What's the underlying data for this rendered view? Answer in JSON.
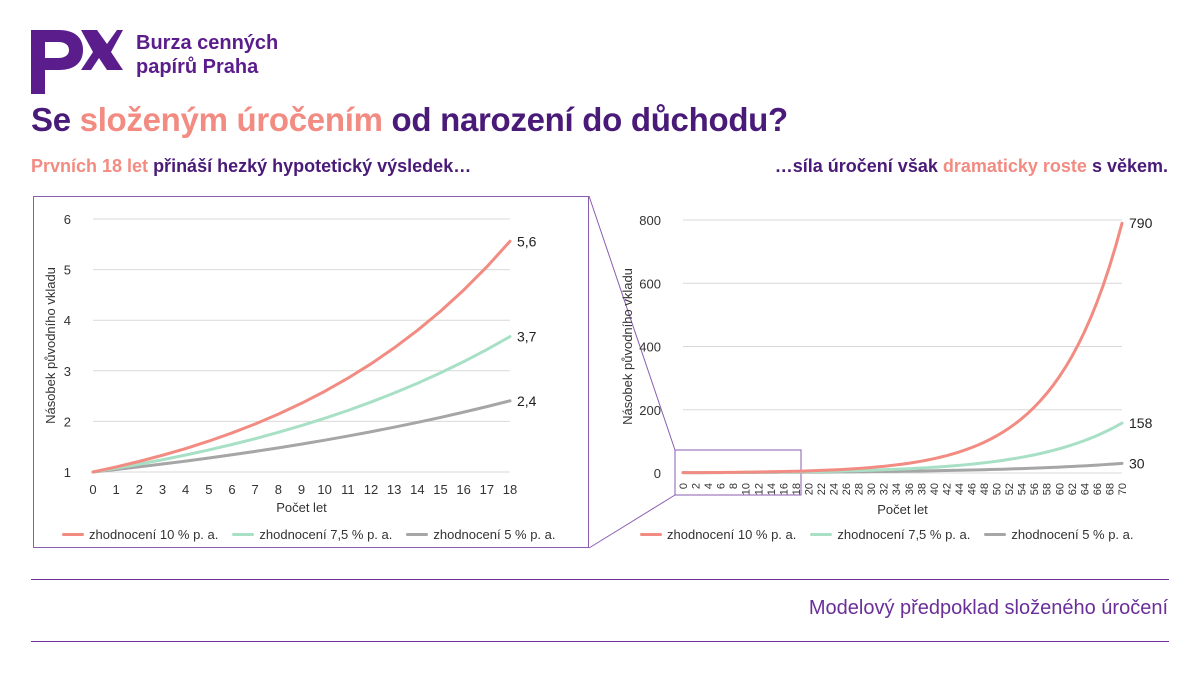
{
  "brand": {
    "name_line1": "Burza cenných",
    "name_line2": "papírů Praha",
    "logo_icon": "px-logo-icon",
    "color": "#5b1d8c"
  },
  "title": {
    "part1": "Se ",
    "highlight": "složeným úročením",
    "part2": " od narození do důchodu?"
  },
  "subtitle_left": {
    "highlight": "Prvních 18 let",
    "rest": " přináší hezký hypotetický výsledek…"
  },
  "subtitle_right": {
    "part1": "…síla úročení však ",
    "highlight": "dramaticky roste",
    "part2": " s věkem."
  },
  "footer": "Modelový předpoklad složeného úročení",
  "colors": {
    "r10": "#f28b82",
    "r75": "#a8e0c6",
    "r5": "#a6a6a6",
    "accent": "#4a1a78",
    "highlight": "#f28b82"
  },
  "chart_data": [
    {
      "type": "line",
      "x": {
        "start": 0,
        "end": 18,
        "step": 1
      },
      "xlabel": "Počet let",
      "ylabel": "Násobek původního vkladu",
      "ylim": [
        1,
        6
      ],
      "yticks": [
        1,
        2,
        3,
        4,
        5,
        6
      ],
      "xticks": [
        "0",
        "1",
        "2",
        "3",
        "4",
        "5",
        "6",
        "7",
        "8",
        "9",
        "10",
        "11",
        "12",
        "13",
        "14",
        "15",
        "16",
        "17",
        "18"
      ],
      "grid": true,
      "legend": "bottom",
      "series": [
        {
          "name": "zhodnocení 10 % p. a.",
          "rate": 0.1,
          "end_label": "5,6",
          "color": "#f28b82"
        },
        {
          "name": "zhodnocení 7,5 % p. a.",
          "rate": 0.075,
          "end_label": "3,7",
          "color": "#a8e0c6"
        },
        {
          "name": "zhodnocení 5 % p. a.",
          "rate": 0.05,
          "end_label": "2,4",
          "color": "#a6a6a6"
        }
      ]
    },
    {
      "type": "line",
      "x": {
        "start": 0,
        "end": 70,
        "step": 1
      },
      "xlabel": "Počet let",
      "ylabel": "Násobek původního vkladu",
      "ylim": [
        0,
        800
      ],
      "yticks": [
        0,
        200,
        400,
        600,
        800
      ],
      "xticks": [
        "0",
        "2",
        "4",
        "6",
        "8",
        "10",
        "12",
        "14",
        "16",
        "18",
        "20",
        "22",
        "24",
        "26",
        "28",
        "30",
        "32",
        "34",
        "36",
        "38",
        "40",
        "42",
        "44",
        "46",
        "48",
        "50",
        "52",
        "54",
        "56",
        "58",
        "60",
        "62",
        "64",
        "66",
        "68",
        "70"
      ],
      "grid": true,
      "legend": "bottom",
      "series": [
        {
          "name": "zhodnocení 10 % p. a.",
          "rate": 0.1,
          "end_label": "790",
          "color": "#f28b82"
        },
        {
          "name": "zhodnocení 7,5 % p. a.",
          "rate": 0.075,
          "end_label": "158",
          "color": "#a8e0c6"
        },
        {
          "name": "zhodnocení 5 % p. a.",
          "rate": 0.05,
          "end_label": "30",
          "color": "#a6a6a6"
        }
      ]
    }
  ]
}
